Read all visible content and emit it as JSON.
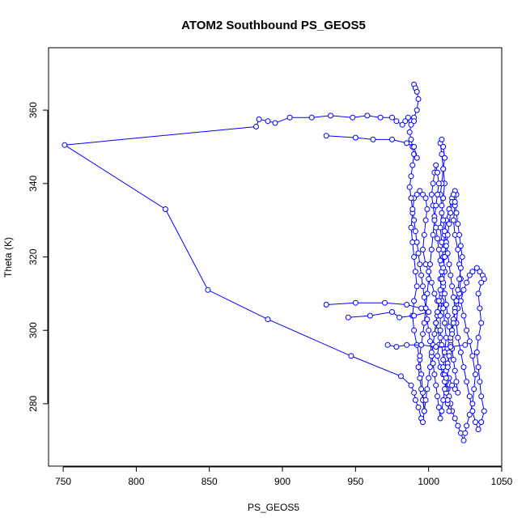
{
  "chart_data": {
    "type": "line",
    "title": "ATOM2 Southbound PS_GEOS5",
    "xlabel": "PS_GEOS5",
    "ylabel": "Theta (K)",
    "xlim": [
      740,
      1050
    ],
    "ylim": [
      263,
      377
    ],
    "x_ticks": [
      750,
      800,
      850,
      900,
      950,
      1000,
      1050
    ],
    "y_ticks": [
      280,
      300,
      320,
      340,
      360
    ],
    "grid": false,
    "series_color": "#0000ff",
    "marker": "open-circle",
    "series": [
      {
        "points": [
          [
            990,
            367
          ],
          [
            991,
            366
          ],
          [
            992,
            365
          ],
          [
            993,
            363
          ],
          [
            992,
            360
          ],
          [
            990,
            358
          ],
          [
            988,
            357
          ],
          [
            986,
            358
          ],
          [
            984,
            357
          ],
          [
            982,
            356
          ],
          [
            978,
            357
          ],
          [
            975,
            358
          ],
          [
            967,
            358
          ],
          [
            958,
            358.5
          ],
          [
            948,
            358
          ],
          [
            933,
            358.5
          ],
          [
            920,
            358
          ],
          [
            905,
            358
          ],
          [
            895,
            356.5
          ],
          [
            890,
            357
          ],
          [
            884,
            357.5
          ],
          [
            882,
            355.5
          ],
          [
            751,
            350.5
          ],
          [
            820,
            333
          ],
          [
            849,
            311
          ],
          [
            890,
            303
          ],
          [
            947,
            293
          ],
          [
            981,
            287.5
          ],
          [
            988,
            285
          ],
          [
            990,
            283
          ],
          [
            991,
            281
          ],
          [
            993,
            279
          ],
          [
            995,
            276
          ],
          [
            996,
            275
          ],
          [
            997,
            278
          ],
          [
            996,
            283
          ],
          [
            995,
            288
          ],
          [
            994,
            292
          ],
          [
            992,
            296
          ],
          [
            990,
            300
          ],
          [
            989,
            304
          ],
          [
            990,
            308
          ],
          [
            992,
            312
          ],
          [
            991,
            316
          ],
          [
            990,
            320
          ],
          [
            989,
            324
          ],
          [
            988,
            328
          ],
          [
            989,
            332
          ],
          [
            990,
            336
          ],
          [
            992,
            337
          ],
          [
            994,
            338
          ],
          [
            996,
            337
          ],
          [
            998,
            336
          ],
          [
            999,
            333
          ],
          [
            998,
            330
          ],
          [
            997,
            326
          ],
          [
            996,
            322
          ],
          [
            998,
            318
          ],
          [
            1000,
            316
          ],
          [
            1002,
            313
          ],
          [
            1004,
            310
          ],
          [
            1006,
            308
          ],
          [
            1008,
            306
          ],
          [
            1006,
            304
          ],
          [
            1005,
            302
          ],
          [
            1006,
            300
          ],
          [
            1008,
            298
          ],
          [
            1007,
            296
          ],
          [
            1006,
            293
          ],
          [
            1008,
            290
          ],
          [
            1010,
            288
          ],
          [
            1012,
            286
          ],
          [
            1013,
            284
          ],
          [
            1014,
            282
          ],
          [
            1015,
            280
          ],
          [
            1016,
            278
          ],
          [
            1018,
            276
          ],
          [
            1020,
            274
          ],
          [
            1022,
            272
          ],
          [
            1024,
            270
          ],
          [
            1025,
            272
          ],
          [
            1026,
            274
          ],
          [
            1028,
            277
          ],
          [
            1030,
            280
          ],
          [
            1031,
            284
          ],
          [
            1032,
            288
          ],
          [
            1030,
            293
          ],
          [
            1028,
            297
          ],
          [
            1026,
            300
          ],
          [
            1024,
            304
          ],
          [
            1022,
            308
          ],
          [
            1024,
            311
          ],
          [
            1026,
            313
          ],
          [
            1028,
            315
          ],
          [
            1030,
            316
          ],
          [
            1033,
            317
          ],
          [
            1035,
            316
          ],
          [
            1037,
            315
          ],
          [
            1038,
            314
          ],
          [
            1036,
            313
          ],
          [
            1034,
            310
          ],
          [
            1035,
            306
          ],
          [
            1036,
            302
          ],
          [
            1034,
            298
          ],
          [
            1033,
            294
          ],
          [
            1034,
            290
          ],
          [
            1035,
            286
          ],
          [
            1036,
            282
          ],
          [
            1038,
            278
          ],
          [
            1036,
            275
          ],
          [
            1034,
            273
          ],
          [
            1032,
            275
          ],
          [
            1030,
            278
          ],
          [
            1028,
            282
          ],
          [
            1026,
            286
          ],
          [
            1024,
            290
          ],
          [
            1022,
            294
          ],
          [
            1020,
            298
          ],
          [
            1019,
            302
          ],
          [
            1020,
            306
          ],
          [
            1021,
            310
          ],
          [
            1022,
            314
          ],
          [
            1021,
            318
          ],
          [
            1020,
            322
          ],
          [
            1018,
            326
          ],
          [
            1017,
            330
          ],
          [
            1018,
            334
          ],
          [
            1019,
            337
          ],
          [
            1018,
            338
          ],
          [
            1016,
            336
          ],
          [
            1014,
            333
          ],
          [
            1012,
            330
          ],
          [
            1011,
            326
          ],
          [
            1010,
            322
          ],
          [
            1009,
            318
          ],
          [
            1008,
            314
          ],
          [
            1009,
            310
          ],
          [
            1010,
            306
          ],
          [
            1011,
            302
          ],
          [
            1012,
            298
          ],
          [
            1011,
            294
          ],
          [
            1010,
            290
          ],
          [
            1011,
            286
          ],
          [
            1012,
            283
          ],
          [
            1013,
            280
          ],
          [
            1014,
            278
          ],
          [
            1013,
            281
          ],
          [
            1012,
            284
          ],
          [
            1011,
            288
          ],
          [
            1010,
            292
          ],
          [
            1009,
            296
          ],
          [
            1008,
            300
          ],
          [
            1008,
            304
          ],
          [
            1009,
            308
          ],
          [
            1010,
            312
          ],
          [
            1011,
            316
          ],
          [
            1010,
            320
          ],
          [
            1009,
            324
          ],
          [
            1008,
            328
          ],
          [
            1009,
            332
          ],
          [
            1010,
            336
          ],
          [
            1011,
            340
          ],
          [
            1010,
            344
          ],
          [
            1009,
            348
          ],
          [
            1008,
            351
          ],
          [
            1009,
            352
          ],
          [
            1010,
            350
          ],
          [
            1011,
            347
          ],
          [
            1010,
            344
          ],
          [
            1009,
            340
          ],
          [
            1008,
            337
          ],
          [
            1009,
            334
          ],
          [
            1010,
            330
          ],
          [
            1011,
            327
          ],
          [
            1012,
            324
          ],
          [
            1013,
            321
          ],
          [
            1014,
            318
          ],
          [
            1015,
            315
          ],
          [
            1016,
            312
          ],
          [
            1017,
            309
          ],
          [
            1018,
            306
          ],
          [
            1017,
            303
          ],
          [
            1016,
            300
          ],
          [
            1015,
            297
          ],
          [
            1014,
            294
          ],
          [
            1013,
            291
          ],
          [
            1012,
            289
          ],
          [
            1014,
            287
          ],
          [
            1016,
            285
          ],
          [
            1018,
            284
          ],
          [
            1020,
            283
          ],
          [
            1019,
            286
          ],
          [
            1018,
            289
          ],
          [
            1017,
            292
          ],
          [
            1016,
            295
          ],
          [
            1015,
            298
          ],
          [
            1014,
            301
          ],
          [
            1013,
            304
          ],
          [
            1012,
            307
          ],
          [
            1011,
            310
          ],
          [
            1010,
            313
          ],
          [
            1009,
            316
          ],
          [
            1008,
            319
          ],
          [
            1007,
            322
          ],
          [
            1006,
            325
          ],
          [
            1005,
            328
          ],
          [
            1004,
            331
          ],
          [
            1003,
            334
          ],
          [
            1002,
            337
          ],
          [
            1003,
            340
          ],
          [
            1004,
            343
          ],
          [
            1005,
            345
          ],
          [
            1006,
            343
          ],
          [
            1007,
            340
          ],
          [
            1006,
            337
          ],
          [
            1005,
            334
          ],
          [
            1004,
            330
          ],
          [
            1003,
            326
          ],
          [
            1002,
            322
          ],
          [
            1001,
            318
          ],
          [
            1000,
            314
          ],
          [
            999,
            310
          ],
          [
            998,
            306
          ],
          [
            997,
            302
          ],
          [
            996,
            299
          ],
          [
            995,
            296
          ],
          [
            994,
            293
          ],
          [
            993,
            290
          ],
          [
            994,
            287
          ],
          [
            995,
            284
          ],
          [
            996,
            281
          ],
          [
            997,
            278
          ],
          [
            998,
            281
          ],
          [
            999,
            284
          ],
          [
            1000,
            287
          ],
          [
            1001,
            290
          ],
          [
            1002,
            293
          ],
          [
            1003,
            296
          ],
          [
            1004,
            299
          ],
          [
            1005,
            302
          ],
          [
            1006,
            305
          ],
          [
            1007,
            308
          ],
          [
            1008,
            311
          ],
          [
            1009,
            314
          ],
          [
            1010,
            317
          ],
          [
            1011,
            320
          ],
          [
            1012,
            323
          ],
          [
            1013,
            326
          ],
          [
            1014,
            329
          ],
          [
            1015,
            332
          ],
          [
            1016,
            335
          ],
          [
            1017,
            337
          ],
          [
            1018,
            335
          ],
          [
            1019,
            332
          ],
          [
            1020,
            329
          ],
          [
            1021,
            326
          ],
          [
            1022,
            323
          ],
          [
            1023,
            320
          ],
          [
            1022,
            317
          ],
          [
            1021,
            314
          ],
          [
            1020,
            311
          ],
          [
            1019,
            308
          ],
          [
            1018,
            305
          ],
          [
            1017,
            302
          ],
          [
            1016,
            299
          ],
          [
            1015,
            296
          ],
          [
            1014,
            293
          ],
          [
            1013,
            290
          ],
          [
            1012,
            287
          ],
          [
            1011,
            284
          ],
          [
            1010,
            281
          ],
          [
            1009,
            278
          ],
          [
            1008,
            276
          ],
          [
            1007,
            279
          ],
          [
            1006,
            282
          ],
          [
            1005,
            285
          ],
          [
            1004,
            288
          ],
          [
            1003,
            291
          ],
          [
            1002,
            294
          ],
          [
            1001,
            297
          ],
          [
            1000,
            300
          ],
          [
            999,
            303
          ],
          [
            998,
            306
          ],
          [
            997,
            309
          ],
          [
            996,
            312
          ],
          [
            995,
            315
          ],
          [
            994,
            318
          ],
          [
            993,
            321
          ],
          [
            992,
            324
          ],
          [
            991,
            327
          ],
          [
            990,
            330
          ],
          [
            989,
            333
          ],
          [
            988,
            336
          ],
          [
            987,
            339
          ],
          [
            988,
            342
          ],
          [
            989,
            345
          ],
          [
            990,
            348
          ],
          [
            989,
            350
          ],
          [
            988,
            352
          ],
          [
            987,
            354
          ],
          [
            988,
            356
          ],
          [
            990,
            357
          ]
        ]
      },
      {
        "points": [
          [
            930,
            307
          ],
          [
            950,
            307.5
          ],
          [
            970,
            307.5
          ],
          [
            985,
            307
          ],
          [
            995,
            306
          ],
          [
            1000,
            305
          ],
          [
            990,
            304
          ],
          [
            980,
            303.5
          ],
          [
            975,
            305
          ],
          [
            960,
            304
          ],
          [
            945,
            303.5
          ]
        ]
      },
      {
        "points": [
          [
            930,
            353
          ],
          [
            950,
            352.5
          ],
          [
            962,
            352
          ],
          [
            975,
            352
          ],
          [
            985,
            351
          ],
          [
            990,
            350
          ],
          [
            992,
            347
          ]
        ]
      },
      {
        "points": [
          [
            972,
            296
          ],
          [
            978,
            295.5
          ],
          [
            985,
            296
          ],
          [
            995,
            296
          ],
          [
            1005,
            295.5
          ],
          [
            1015,
            295.5
          ],
          [
            1025,
            296
          ]
        ]
      }
    ]
  }
}
